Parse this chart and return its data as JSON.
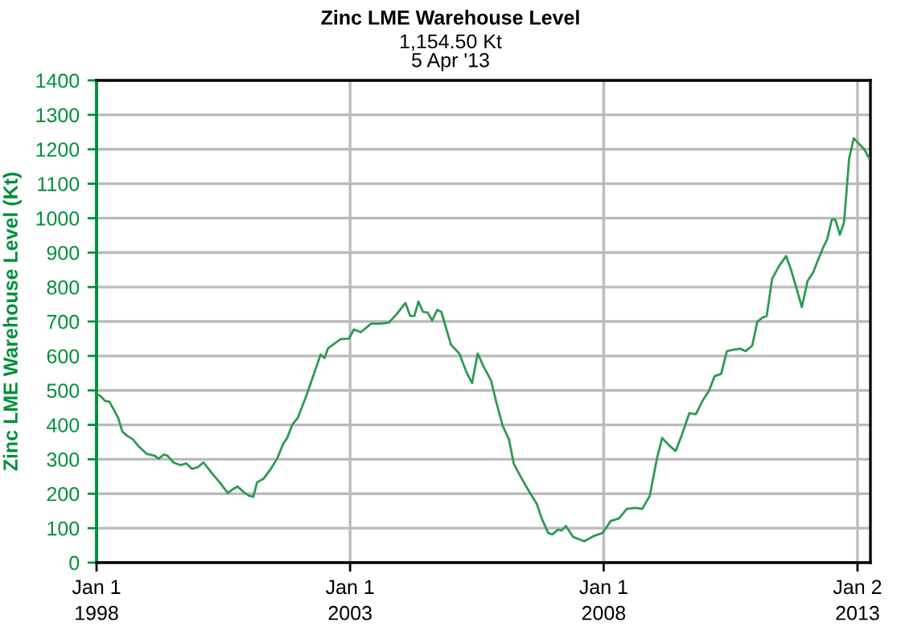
{
  "chart_data": {
    "type": "line",
    "title": "Zinc LME Warehouse Level",
    "subtitle": "1,154.50 Kt\n5 Apr '13",
    "ylabel": "Zinc LME Warehouse Level (Kt)",
    "xlim": [
      "1998-01-01",
      "2013-04-05"
    ],
    "xticks": [
      {
        "value": "1998-01-01",
        "label": "Jan 1\n1998"
      },
      {
        "value": "2003-01-01",
        "label": "Jan 1\n2003"
      },
      {
        "value": "2008-01-01",
        "label": "Jan 1\n2008"
      },
      {
        "value": "2013-01-02",
        "label": "Jan 2\n2013"
      }
    ],
    "ylim": [
      0,
      1400
    ],
    "yticks": [
      0,
      100,
      200,
      300,
      400,
      500,
      600,
      700,
      800,
      900,
      1000,
      1100,
      1200,
      1300,
      1400
    ],
    "grid": true,
    "marker": "none",
    "line_style": "solid",
    "series": [
      {
        "color": "#2e9a52",
        "x": [
          "1998-01-01",
          "1998-02-03",
          "1998-03-02",
          "1998-04-04",
          "1998-05-07",
          "1998-06-06",
          "1998-07-05",
          "1998-08-07",
          "1998-09-20",
          "1998-10-28",
          "1998-12-27",
          "1999-02-25",
          "1999-03-24",
          "1999-05-03",
          "1999-05-28",
          "1999-07-08",
          "1999-08-28",
          "1999-10-08",
          "1999-11-21",
          "2000-01-01",
          "2000-02-10",
          "2000-04-08",
          "2000-06-06",
          "2000-08-03",
          "2000-09-09",
          "2000-10-12",
          "2000-11-25",
          "2001-01-04",
          "2001-02-03",
          "2001-03-02",
          "2001-04-19",
          "2001-06-09",
          "2001-07-26",
          "2001-09-06",
          "2001-10-05",
          "2001-11-11",
          "2001-12-20",
          "2002-02-10",
          "2002-03-06",
          "2002-04-19",
          "2002-06-02",
          "2002-07-01",
          "2002-07-26",
          "2002-09-17",
          "2002-10-26",
          "2002-12-24",
          "2003-01-28",
          "2003-03-20",
          "2003-06-02",
          "2003-08-10",
          "2003-10-08",
          "2003-12-06",
          "2004-02-03",
          "2004-03-09",
          "2004-04-08",
          "2004-05-07",
          "2004-06-09",
          "2004-07-12",
          "2004-08-14",
          "2004-09-20",
          "2004-10-19",
          "2004-12-27",
          "2005-02-25",
          "2005-04-19",
          "2005-05-28",
          "2005-07-08",
          "2005-08-21",
          "2005-10-12",
          "2005-11-18",
          "2006-01-04",
          "2006-02-18",
          "2006-03-24",
          "2006-05-18",
          "2006-07-08",
          "2006-09-06",
          "2006-10-12",
          "2006-11-28",
          "2006-12-27",
          "2007-02-07",
          "2007-03-02",
          "2007-04-04",
          "2007-05-25",
          "2007-08-14",
          "2007-10-26",
          "2007-12-24",
          "2008-02-21",
          "2008-04-19",
          "2008-06-16",
          "2008-08-14",
          "2008-10-05",
          "2008-11-28",
          "2009-01-19",
          "2009-02-25",
          "2009-04-12",
          "2009-06-02",
          "2009-07-19",
          "2009-09-09",
          "2009-10-26",
          "2009-12-13",
          "2010-01-28",
          "2010-03-09",
          "2010-04-26",
          "2010-06-06",
          "2010-07-23",
          "2010-09-09",
          "2010-10-19",
          "2010-12-06",
          "2011-01-12",
          "2011-02-21",
          "2011-03-20",
          "2011-04-28",
          "2011-06-20",
          "2011-08-07",
          "2011-09-13",
          "2011-10-23",
          "2011-11-28",
          "2012-01-08",
          "2012-02-18",
          "2012-03-24",
          "2012-05-03",
          "2012-05-28",
          "2012-07-01",
          "2012-07-26",
          "2012-08-28",
          "2012-09-27",
          "2012-11-03",
          "2012-12-06",
          "2013-01-12",
          "2013-02-18",
          "2013-03-27"
        ],
        "values": [
          490,
          482,
          470,
          467,
          443,
          420,
          381,
          369,
          358,
          339,
          316,
          310,
          302,
          314,
          310,
          291,
          283,
          288,
          272,
          277,
          291,
          261,
          233,
          202,
          213,
          221,
          205,
          194,
          191,
          233,
          244,
          272,
          303,
          345,
          362,
          401,
          420,
          474,
          501,
          552,
          604,
          594,
          622,
          638,
          649,
          650,
          677,
          669,
          694,
          694,
          697,
          723,
          754,
          716,
          716,
          758,
          728,
          726,
          703,
          734,
          728,
          633,
          607,
          552,
          521,
          607,
          568,
          529,
          467,
          397,
          358,
          288,
          246,
          210,
          171,
          128,
          86,
          82,
          96,
          93,
          106,
          75,
          62,
          78,
          86,
          121,
          128,
          156,
          159,
          156,
          194,
          303,
          362,
          342,
          324,
          373,
          434,
          431,
          470,
          498,
          541,
          548,
          614,
          618,
          621,
          614,
          630,
          700,
          712,
          716,
          824,
          863,
          890,
          848,
          793,
          742,
          817,
          843,
          879,
          918,
          938,
          996,
          996,
          952,
          988,
          1174,
          1232,
          1216,
          1201,
          1174
        ]
      }
    ]
  }
}
